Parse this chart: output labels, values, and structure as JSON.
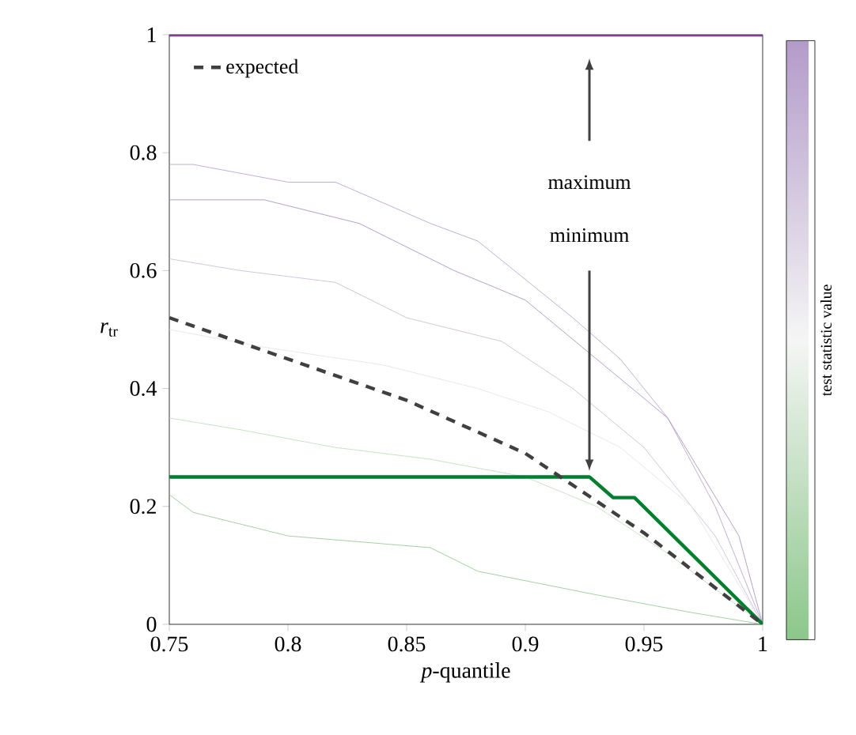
{
  "chart_data": {
    "type": "line",
    "xlabel": "*p*-quantile",
    "ylabel": "*r*$_{tr}$",
    "clabel": "test statistic value",
    "xlim": [
      0.75,
      1
    ],
    "ylim": [
      0,
      1
    ],
    "xticks": [
      0.75,
      0.8,
      0.85,
      0.9,
      0.95,
      1
    ],
    "yticks": [
      0,
      0.2,
      0.4,
      0.6,
      0.8,
      1
    ],
    "grid": false,
    "legend": "top left",
    "marker": "none",
    "annotations": [
      "maximum",
      "minimum"
    ],
    "series": [
      {
        "color": "#b39bc9",
        "x": [
          0.75,
          0.76,
          0.8,
          0.82,
          0.86,
          0.88,
          0.92,
          0.94,
          0.96,
          0.98,
          1
        ],
        "values": [
          0.78,
          0.78,
          0.75,
          0.75,
          0.68,
          0.65,
          0.52,
          0.45,
          0.35,
          0.2,
          0
        ]
      },
      {
        "color": "#a688bd",
        "x": [
          0.75,
          0.79,
          0.83,
          0.87,
          0.9,
          0.93,
          0.96,
          0.99,
          1
        ],
        "values": [
          0.72,
          0.72,
          0.68,
          0.6,
          0.55,
          0.45,
          0.35,
          0.15,
          0
        ]
      },
      {
        "color": "#c8b6d6",
        "x": [
          0.75,
          0.78,
          0.82,
          0.85,
          0.89,
          0.92,
          0.95,
          0.98,
          1
        ],
        "values": [
          0.62,
          0.6,
          0.58,
          0.52,
          0.48,
          0.4,
          0.3,
          0.15,
          0
        ]
      },
      {
        "color": "#e4e0e8",
        "x": [
          0.75,
          0.79,
          0.84,
          0.88,
          0.91,
          0.94,
          0.97,
          1
        ],
        "values": [
          0.5,
          0.47,
          0.44,
          0.4,
          0.36,
          0.3,
          0.2,
          0
        ]
      },
      {
        "color": "#b9dcb5",
        "x": [
          0.75,
          0.78,
          0.82,
          0.86,
          0.9,
          0.93,
          0.96,
          1
        ],
        "values": [
          0.35,
          0.33,
          0.3,
          0.28,
          0.25,
          0.2,
          0.12,
          0
        ]
      },
      {
        "color": "#8cc78a",
        "x": [
          0.75,
          0.76,
          0.8,
          0.86,
          0.88,
          0.93,
          0.97,
          1
        ],
        "values": [
          0.22,
          0.19,
          0.15,
          0.13,
          0.09,
          0.05,
          0.02,
          0
        ]
      },
      {
        "color": "#7f3f98",
        "x": [
          0.75,
          1
        ],
        "values": [
          1,
          1
        ]
      },
      {
        "color": "#00802f",
        "x": [
          0.75,
          0.927,
          0.937,
          0.946,
          1
        ],
        "values": [
          0.25,
          0.25,
          0.215,
          0.215,
          0
        ]
      },
      {
        "name": "expected",
        "color": "#404040",
        "line_style": "dashed",
        "x": [
          0.75,
          0.8,
          0.85,
          0.9,
          0.95,
          1
        ],
        "values": [
          0.52,
          0.45,
          0.38,
          0.29,
          0.155,
          0
        ]
      }
    ]
  }
}
